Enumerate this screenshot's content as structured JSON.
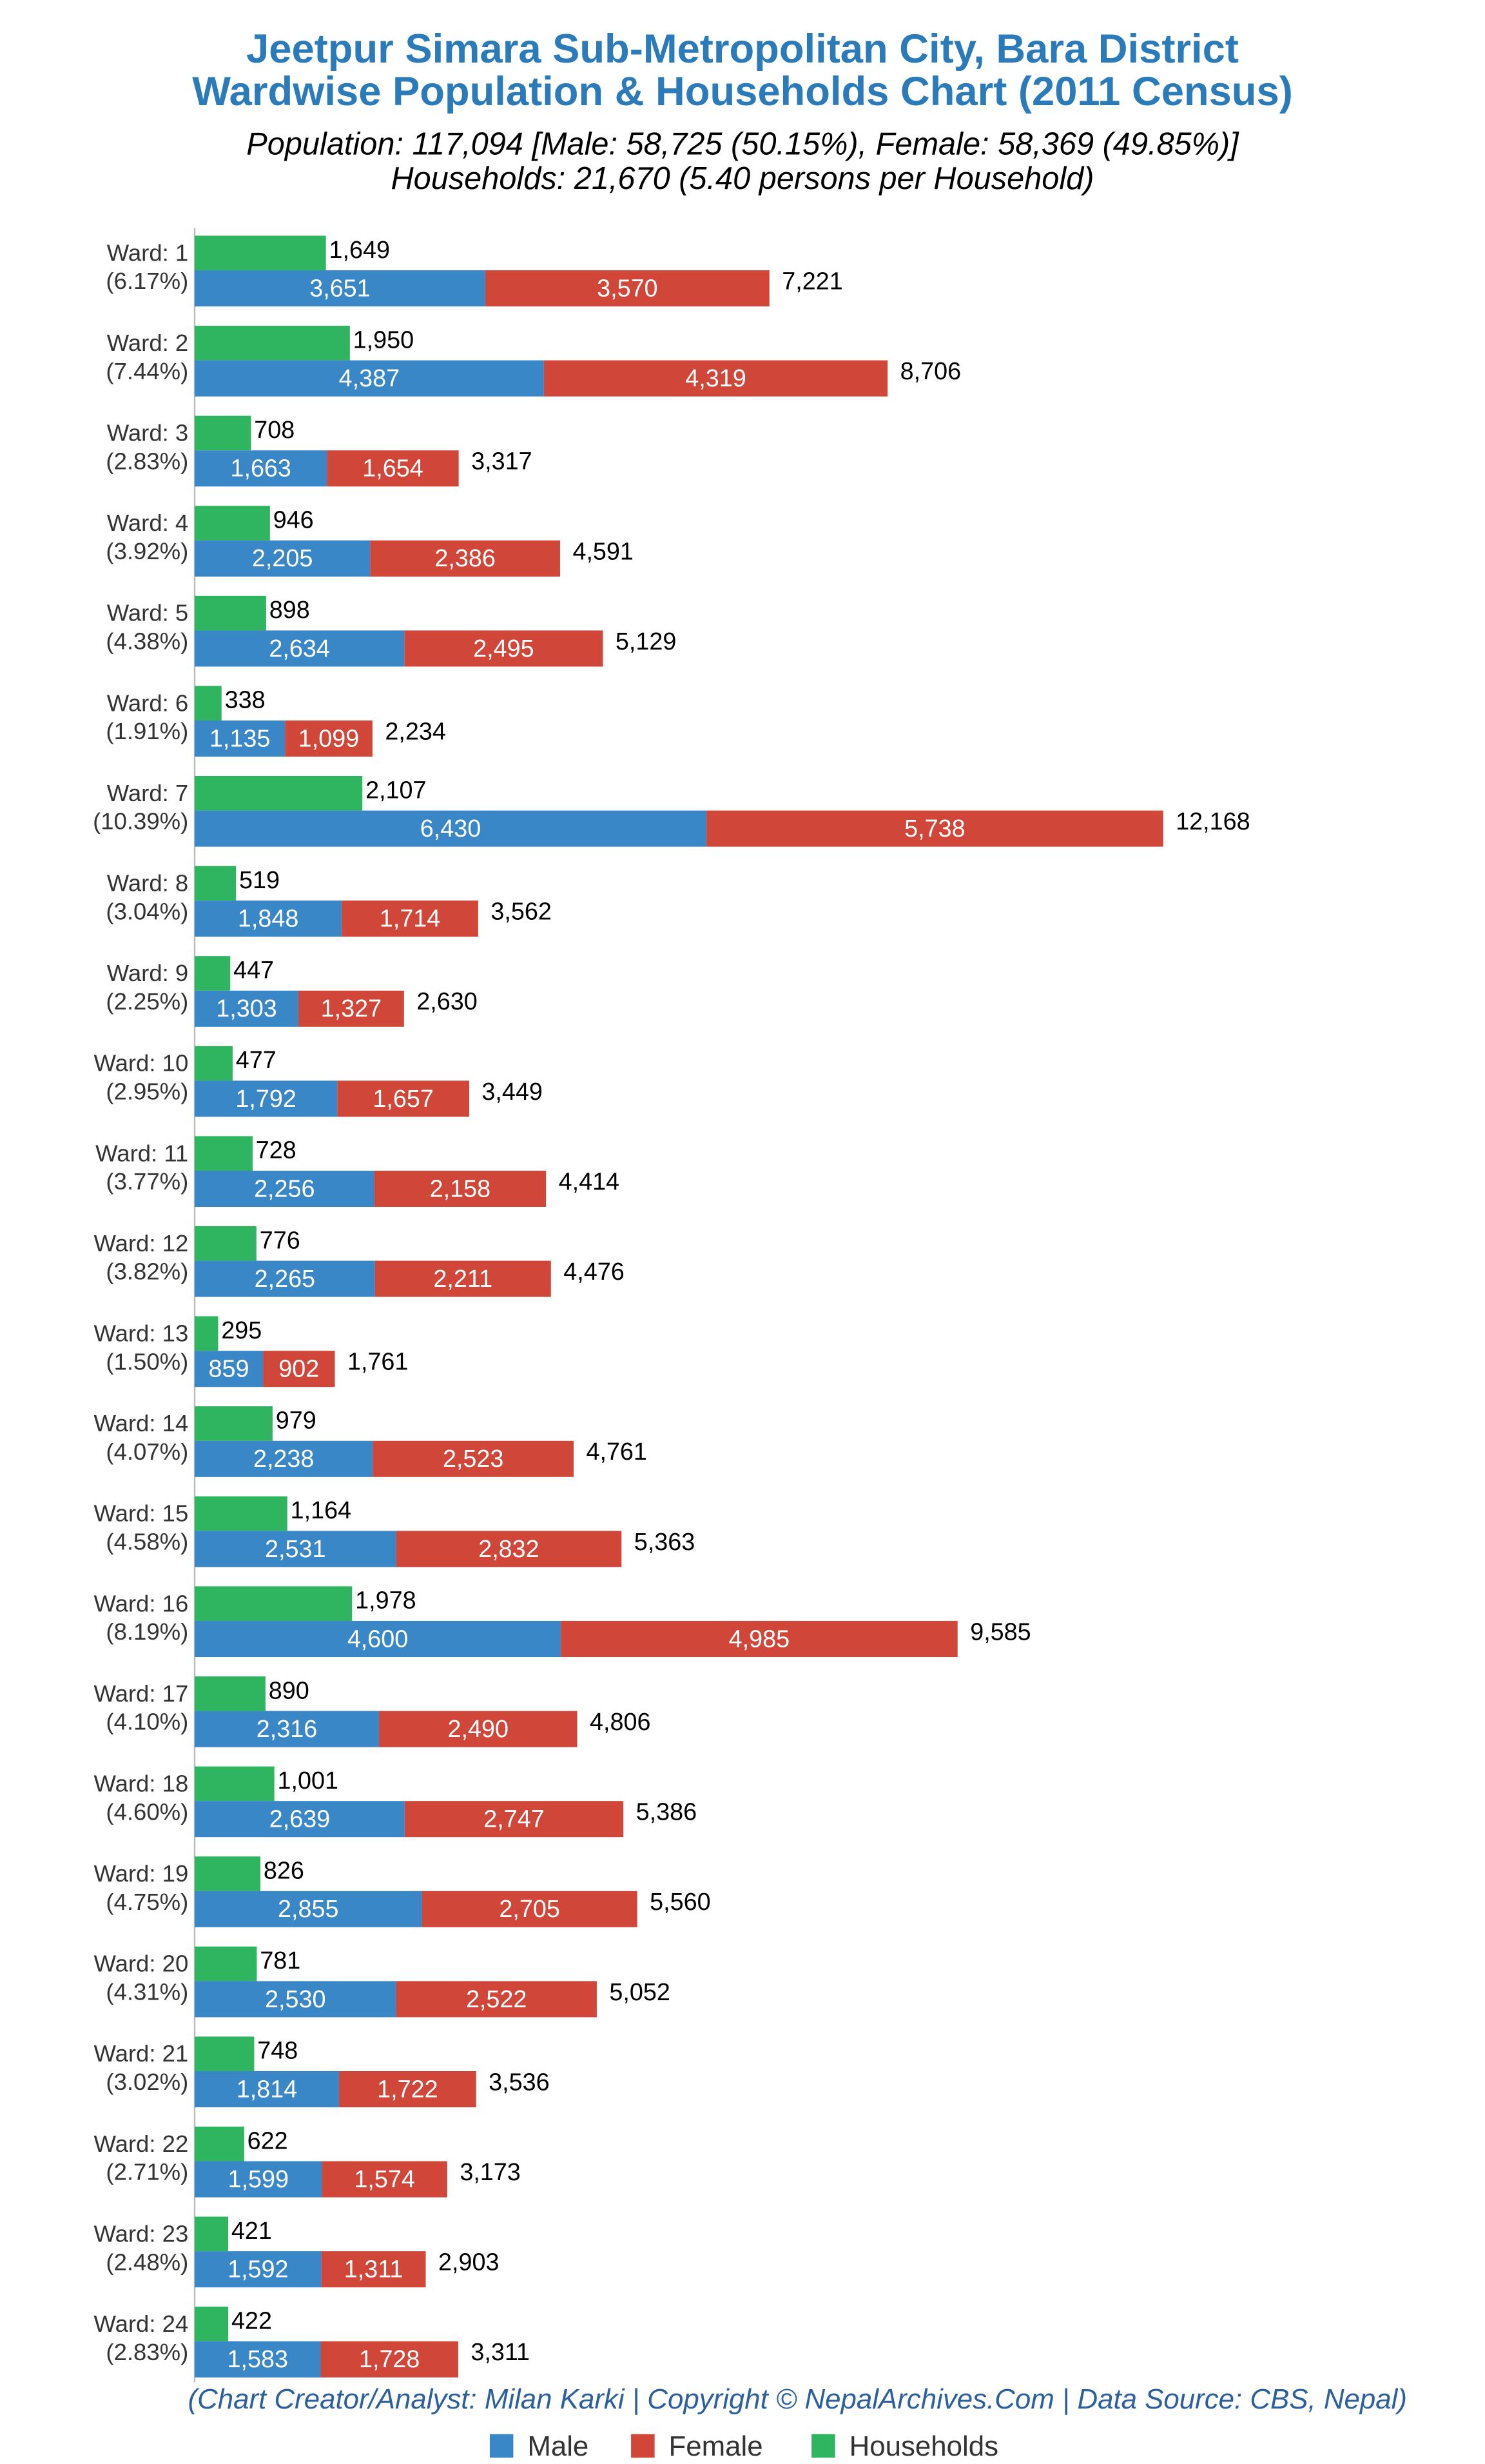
{
  "chart_data": {
    "type": "bar",
    "title": [
      "Jeetpur Simara Sub-Metropolitan City, Bara District",
      "Wardwise Population & Households Chart (2011 Census)"
    ],
    "subtitle": [
      "Population: 117,094 [Male: 58,725 (50.15%), Female: 58,369 (49.85%)]",
      "Households: 21,670 (5.40 persons per Household)"
    ],
    "note": "(Chart Creator/Analyst: Milan Karki | Copyright © NepalArchives.Com | Data Source: CBS, Nepal)",
    "categories": [
      "Ward: 1",
      "Ward: 2",
      "Ward: 3",
      "Ward: 4",
      "Ward: 5",
      "Ward: 6",
      "Ward: 7",
      "Ward: 8",
      "Ward: 9",
      "Ward: 10",
      "Ward: 11",
      "Ward: 12",
      "Ward: 13",
      "Ward: 14",
      "Ward: 15",
      "Ward: 16",
      "Ward: 17",
      "Ward: 18",
      "Ward: 19",
      "Ward: 20",
      "Ward: 21",
      "Ward: 22",
      "Ward: 23",
      "Ward: 24"
    ],
    "shares": {
      "values": [
        6.17,
        7.44,
        2.83,
        3.92,
        4.38,
        1.91,
        10.39,
        3.04,
        2.25,
        2.95,
        3.77,
        3.82,
        1.5,
        4.07,
        4.58,
        8.19,
        4.1,
        4.6,
        4.75,
        4.31,
        3.02,
        2.71,
        2.48,
        2.83
      ],
      "value_labels": [
        "(6.17%)",
        "(7.44%)",
        "(2.83%)",
        "(3.92%)",
        "(4.38%)",
        "(1.91%)",
        "(10.39%)",
        "(3.04%)",
        "(2.25%)",
        "(2.95%)",
        "(3.77%)",
        "(3.82%)",
        "(1.50%)",
        "(4.07%)",
        "(4.58%)",
        "(8.19%)",
        "(4.10%)",
        "(4.60%)",
        "(4.75%)",
        "(4.31%)",
        "(3.02%)",
        "(2.71%)",
        "(2.48%)",
        "(2.83%)"
      ]
    },
    "series": [
      {
        "name": "Male",
        "color": "#3a87c8",
        "values": [
          3651,
          4387,
          1663,
          2205,
          2634,
          1135,
          6430,
          1848,
          1303,
          1792,
          2256,
          2265,
          859,
          2238,
          2531,
          4600,
          2316,
          2639,
          2855,
          2530,
          1814,
          1599,
          1592,
          1583
        ],
        "value_labels": [
          "3,651",
          "4,387",
          "1,663",
          "2,205",
          "2,634",
          "1,135",
          "6,430",
          "1,848",
          "1,303",
          "1,792",
          "2,256",
          "2,265",
          "859",
          "2,238",
          "2,531",
          "4,600",
          "2,316",
          "2,639",
          "2,855",
          "2,530",
          "1,814",
          "1,599",
          "1,592",
          "1,583"
        ]
      },
      {
        "name": "Female",
        "color": "#d0473a",
        "values": [
          3570,
          4319,
          1654,
          2386,
          2495,
          1099,
          5738,
          1714,
          1327,
          1657,
          2158,
          2211,
          902,
          2523,
          2832,
          4985,
          2490,
          2747,
          2705,
          2522,
          1722,
          1574,
          1311,
          1728
        ],
        "value_labels": [
          "3,570",
          "4,319",
          "1,654",
          "2,386",
          "2,495",
          "1,099",
          "5,738",
          "1,714",
          "1,327",
          "1,657",
          "2,158",
          "2,211",
          "902",
          "2,523",
          "2,832",
          "4,985",
          "2,490",
          "2,747",
          "2,705",
          "2,522",
          "1,722",
          "1,574",
          "1,311",
          "1,728"
        ]
      },
      {
        "name": "Households",
        "color": "#2fb45f",
        "values": [
          1649,
          1950,
          708,
          946,
          898,
          338,
          2107,
          519,
          447,
          477,
          728,
          776,
          295,
          979,
          1164,
          1978,
          890,
          1001,
          826,
          781,
          748,
          622,
          421,
          422
        ],
        "value_labels": [
          "1,649",
          "1,950",
          "708",
          "946",
          "898",
          "338",
          "2,107",
          "519",
          "447",
          "477",
          "728",
          "776",
          "295",
          "979",
          "1,164",
          "1,978",
          "890",
          "1,001",
          "826",
          "781",
          "748",
          "622",
          "421",
          "422"
        ]
      }
    ],
    "totals": {
      "values": [
        7221,
        8706,
        3317,
        4591,
        5129,
        2234,
        12168,
        3562,
        2630,
        3449,
        4414,
        4476,
        1761,
        4761,
        5363,
        9585,
        4806,
        5386,
        5560,
        5052,
        3536,
        3173,
        2903,
        3311
      ],
      "value_labels": [
        "7,221",
        "8,706",
        "3,317",
        "4,591",
        "5,129",
        "2,234",
        "12,168",
        "3,562",
        "2,630",
        "3,449",
        "4,414",
        "4,476",
        "1,761",
        "4,761",
        "5,363",
        "9,585",
        "4,806",
        "5,386",
        "5,560",
        "5,052",
        "3,536",
        "3,173",
        "2,903",
        "3,311"
      ]
    },
    "legend": "bottom"
  }
}
